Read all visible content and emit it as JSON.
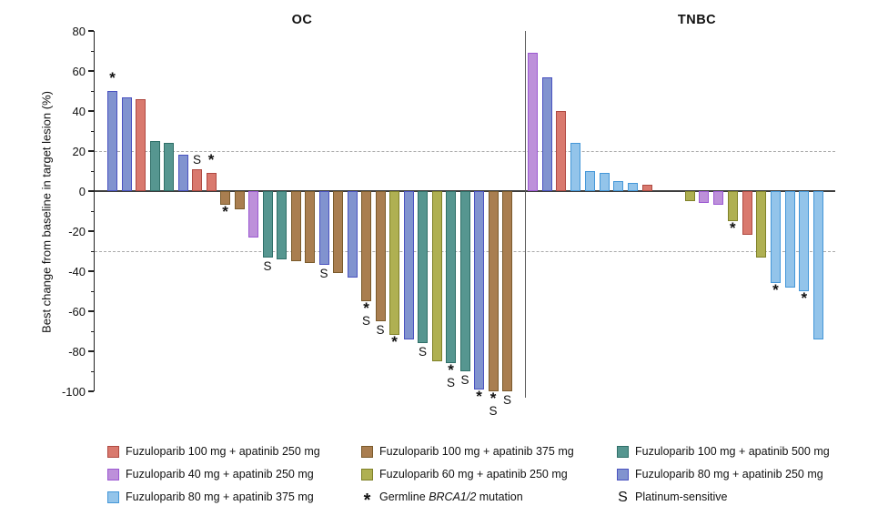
{
  "chart_data": {
    "type": "bar",
    "variant": "waterfall",
    "ylabel": "Best change from baseline in target lesion (%)",
    "ylim": [
      -100,
      80
    ],
    "yticks": [
      80,
      60,
      40,
      20,
      0,
      -20,
      -40,
      -60,
      -80,
      -100
    ],
    "reference_lines": [
      20,
      -30
    ],
    "grid": "off",
    "panels": [
      {
        "label": "OC",
        "bars": [
          {
            "value": 50,
            "group": "f80a250",
            "symbols": [
              "*"
            ]
          },
          {
            "value": 47,
            "group": "f80a250",
            "symbols": []
          },
          {
            "value": 46,
            "group": "f100a250",
            "symbols": []
          },
          {
            "value": 25,
            "group": "f100a500",
            "symbols": []
          },
          {
            "value": 24,
            "group": "f100a500",
            "symbols": []
          },
          {
            "value": 18,
            "group": "f80a250",
            "symbols": []
          },
          {
            "value": 11,
            "group": "f100a250",
            "symbols": [
              "S"
            ]
          },
          {
            "value": 9,
            "group": "f100a250",
            "symbols": [
              "*"
            ]
          },
          {
            "value": -7,
            "group": "f100a375",
            "symbols": [
              "*"
            ]
          },
          {
            "value": -9,
            "group": "f100a375",
            "symbols": []
          },
          {
            "value": -23,
            "group": "f40a250",
            "symbols": []
          },
          {
            "value": -33,
            "group": "f100a500",
            "symbols": [
              "S"
            ]
          },
          {
            "value": -34,
            "group": "f100a500",
            "symbols": []
          },
          {
            "value": -35,
            "group": "f100a375",
            "symbols": []
          },
          {
            "value": -36,
            "group": "f100a375",
            "symbols": []
          },
          {
            "value": -37,
            "group": "f80a250",
            "symbols": [
              "S"
            ]
          },
          {
            "value": -41,
            "group": "f100a375",
            "symbols": []
          },
          {
            "value": -43,
            "group": "f80a250",
            "symbols": []
          },
          {
            "value": -55,
            "group": "f100a375",
            "symbols": [
              "*",
              "S"
            ]
          },
          {
            "value": -65,
            "group": "f100a375",
            "symbols": [
              "S"
            ]
          },
          {
            "value": -72,
            "group": "f60a250",
            "symbols": [
              "*"
            ]
          },
          {
            "value": -74,
            "group": "f80a250",
            "symbols": []
          },
          {
            "value": -76,
            "group": "f100a500",
            "symbols": [
              "S"
            ]
          },
          {
            "value": -85,
            "group": "f60a250",
            "symbols": []
          },
          {
            "value": -86,
            "group": "f100a500",
            "symbols": [
              "*",
              "S"
            ]
          },
          {
            "value": -90,
            "group": "f100a500",
            "symbols": [
              "S"
            ]
          },
          {
            "value": -99,
            "group": "f80a250",
            "symbols": [
              "*"
            ]
          },
          {
            "value": -100,
            "group": "f100a375",
            "symbols": [
              "*",
              "S"
            ]
          },
          {
            "value": -100,
            "group": "f100a375",
            "symbols": [
              "S"
            ]
          }
        ]
      },
      {
        "label": "TNBC",
        "bars": [
          {
            "value": 69,
            "group": "f40a250",
            "symbols": []
          },
          {
            "value": 57,
            "group": "f80a250",
            "symbols": []
          },
          {
            "value": 40,
            "group": "f100a250",
            "symbols": []
          },
          {
            "value": 24,
            "group": "f80a375",
            "symbols": []
          },
          {
            "value": 10,
            "group": "f80a375",
            "symbols": []
          },
          {
            "value": 9,
            "group": "f80a375",
            "symbols": []
          },
          {
            "value": 5,
            "group": "f80a375",
            "symbols": []
          },
          {
            "value": 4,
            "group": "f80a375",
            "symbols": []
          },
          {
            "value": 3,
            "group": "f100a250",
            "symbols": []
          },
          {
            "value": 0,
            "group": null,
            "symbols": []
          },
          {
            "value": 0,
            "group": null,
            "symbols": []
          },
          {
            "value": -5,
            "group": "f60a250",
            "symbols": []
          },
          {
            "value": -6,
            "group": "f40a250",
            "symbols": []
          },
          {
            "value": -7,
            "group": "f40a250",
            "symbols": []
          },
          {
            "value": -15,
            "group": "f60a250",
            "symbols": [
              "*"
            ]
          },
          {
            "value": -22,
            "group": "f100a250",
            "symbols": []
          },
          {
            "value": -33,
            "group": "f60a250",
            "symbols": []
          },
          {
            "value": -46,
            "group": "f80a375",
            "symbols": [
              "*"
            ]
          },
          {
            "value": -48,
            "group": "f80a375",
            "symbols": []
          },
          {
            "value": -50,
            "group": "f80a375",
            "symbols": [
              "*"
            ]
          },
          {
            "value": -74,
            "group": "f80a375",
            "symbols": []
          }
        ]
      }
    ],
    "groups": {
      "f100a250": {
        "label": "Fuzuloparib 100 mg + apatinib 250 mg",
        "fill": "#D9796E",
        "border": "#AF4A42"
      },
      "f100a375": {
        "label": "Fuzuloparib 100 mg + apatinib 375 mg",
        "fill": "#A97E50",
        "border": "#7A5A2B"
      },
      "f100a500": {
        "label": "Fuzuloparib 100 mg + apatinib 500 mg",
        "fill": "#569690",
        "border": "#2F6F68"
      },
      "f40a250": {
        "label": "Fuzuloparib 40 mg + apatinib 250 mg",
        "fill": "#BD90DA",
        "border": "#9C59D2"
      },
      "f60a250": {
        "label": "Fuzuloparib 60 mg + apatinib 250 mg",
        "fill": "#AFB052",
        "border": "#7F8128"
      },
      "f80a250": {
        "label": "Fuzuloparib 80 mg + apatinib 250 mg",
        "fill": "#8193CF",
        "border": "#4A52C0"
      },
      "f80a375": {
        "label": "Fuzuloparib 80 mg + apatinib 375 mg",
        "fill": "#93C4EA",
        "border": "#4497D8"
      }
    },
    "legend": {
      "columns": [
        [
          {
            "type": "swatch",
            "group": "f100a250"
          },
          {
            "type": "swatch",
            "group": "f40a250"
          },
          {
            "type": "swatch",
            "group": "f80a375"
          }
        ],
        [
          {
            "type": "swatch",
            "group": "f100a375"
          },
          {
            "type": "swatch",
            "group": "f60a250"
          },
          {
            "type": "symbol",
            "symbol": "*",
            "prefix": "Germline ",
            "italic": "BRCA1/2",
            "suffix": " mutation"
          }
        ],
        [
          {
            "type": "swatch",
            "group": "f100a500"
          },
          {
            "type": "swatch",
            "group": "f80a250"
          },
          {
            "type": "symbol",
            "symbol": "S",
            "prefix": "Platinum-sensitive",
            "italic": "",
            "suffix": ""
          }
        ]
      ]
    }
  }
}
